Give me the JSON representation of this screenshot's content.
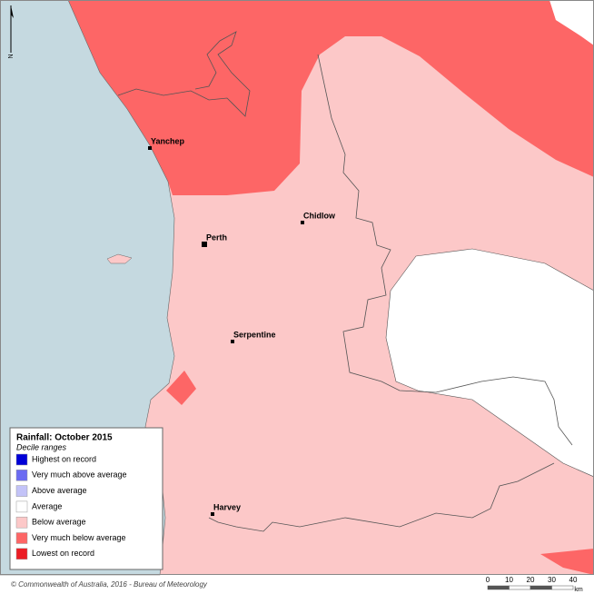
{
  "map": {
    "north_label": "N",
    "legend": {
      "title": "Rainfall: October 2015",
      "subtitle": "Decile ranges",
      "items": [
        {
          "label": "Highest on record",
          "color": "#0000d8"
        },
        {
          "label": "Very much above average",
          "color": "#6b6bf2"
        },
        {
          "label": "Above average",
          "color": "#c3c3f8"
        },
        {
          "label": "Average",
          "color": "#ffffff"
        },
        {
          "label": "Below average",
          "color": "#fcc8c8"
        },
        {
          "label": "Very much below average",
          "color": "#fd6666"
        },
        {
          "label": "Lowest on record",
          "color": "#ec1c24"
        }
      ]
    },
    "places": [
      "Yanchep",
      "Perth",
      "Chidlow",
      "Serpentine",
      "Harvey"
    ],
    "scale": {
      "ticks": [
        0,
        10,
        20,
        30,
        40
      ],
      "unit": "km"
    },
    "copyright": "© Commonwealth of Australia, 2016 - Bureau of Meteorology"
  }
}
